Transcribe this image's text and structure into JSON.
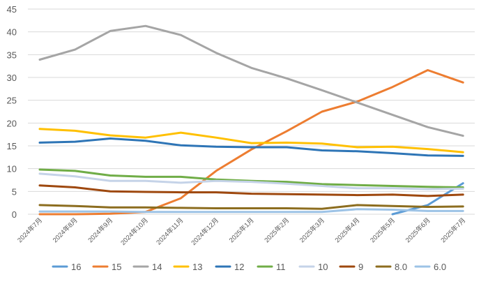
{
  "chart_data": {
    "type": "line",
    "title": "",
    "xlabel": "",
    "ylabel": "",
    "ylim": [
      0,
      45
    ],
    "yticks": [
      0,
      5,
      10,
      15,
      20,
      25,
      30,
      35,
      40,
      45
    ],
    "grid": true,
    "legend_position": "bottom",
    "categories": [
      "2024年7月",
      "2024年8月",
      "2024年9月",
      "2024年10月",
      "2024年11月",
      "2024年12月",
      "2025年1月",
      "2025年2月",
      "2025年3月",
      "2025年4月",
      "2025年5月",
      "2025年6月",
      "2025年7月"
    ],
    "series": [
      {
        "name": "16",
        "color": "#5b9bd5",
        "values": [
          null,
          null,
          null,
          null,
          null,
          null,
          null,
          null,
          null,
          null,
          0.0,
          2.0,
          6.8
        ]
      },
      {
        "name": "15",
        "color": "#ed7d31",
        "values": [
          0.0,
          0.0,
          0.1,
          0.5,
          3.5,
          9.5,
          14.2,
          18.2,
          22.5,
          24.7,
          27.9,
          31.6,
          28.9
        ]
      },
      {
        "name": "14",
        "color": "#a5a5a5",
        "values": [
          33.9,
          36.1,
          40.2,
          41.3,
          39.3,
          35.4,
          32.1,
          29.8,
          27.2,
          24.5,
          21.8,
          19.1,
          17.2
        ]
      },
      {
        "name": "13",
        "color": "#ffc000",
        "values": [
          18.7,
          18.3,
          17.3,
          16.8,
          17.9,
          16.8,
          15.6,
          15.7,
          15.5,
          14.7,
          14.8,
          14.3,
          13.6
        ]
      },
      {
        "name": "12",
        "color": "#2e75b6",
        "values": [
          15.7,
          15.9,
          16.6,
          16.1,
          15.1,
          14.8,
          14.7,
          14.7,
          14.0,
          13.8,
          13.4,
          12.9,
          12.8
        ]
      },
      {
        "name": "11",
        "color": "#70ad47",
        "values": [
          9.8,
          9.5,
          8.5,
          8.2,
          8.2,
          7.6,
          7.3,
          7.1,
          6.6,
          6.4,
          6.2,
          6.0,
          5.9
        ]
      },
      {
        "name": "10",
        "color": "#c5d3e8",
        "values": [
          8.9,
          8.3,
          7.3,
          7.3,
          6.9,
          7.3,
          7.1,
          6.7,
          6.2,
          5.7,
          5.7,
          5.5,
          5.6
        ]
      },
      {
        "name": "9",
        "color": "#9e480e",
        "values": [
          6.3,
          5.9,
          5.0,
          4.9,
          4.8,
          4.8,
          4.5,
          4.4,
          4.3,
          4.2,
          4.3,
          4.0,
          4.3
        ]
      },
      {
        "name": "8.0",
        "color": "#8c6d1f",
        "values": [
          2.0,
          1.8,
          1.5,
          1.5,
          1.4,
          1.3,
          1.3,
          1.3,
          1.2,
          2.0,
          1.8,
          1.6,
          1.7
        ]
      },
      {
        "name": "6.0",
        "color": "#9dc3e6",
        "values": [
          0.6,
          0.6,
          0.6,
          0.5,
          0.5,
          0.5,
          0.5,
          0.5,
          0.5,
          1.1,
          1.0,
          0.7,
          0.7
        ]
      }
    ]
  }
}
